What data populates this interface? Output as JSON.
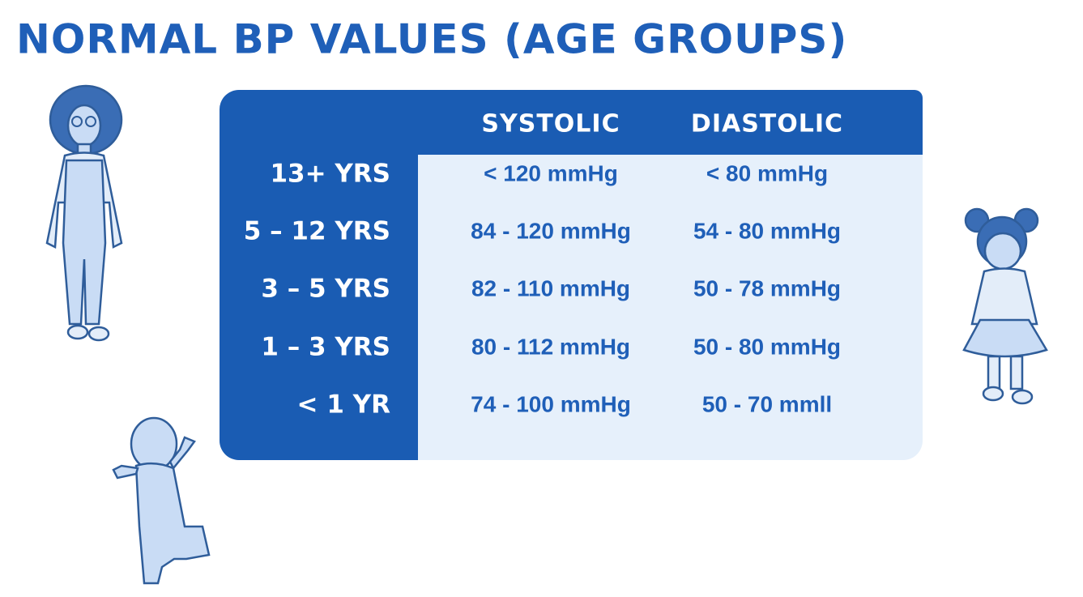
{
  "title": "NORMAL BP VALUES (AGE GROUPS)",
  "table": {
    "header": [
      "SYSTOLIC",
      "DIASTOLIC"
    ],
    "rows": [
      [
        "13+ YRS",
        "< 120 mmHg",
        "< 80 mmHg"
      ],
      [
        "5 – 12 YRS",
        "84 - 120 mmHg",
        "54 - 80 mmHg"
      ],
      [
        "3 – 5 YRS",
        "82 - 110 mmHg",
        "50 - 78 mmHg"
      ],
      [
        "1 – 3 YRS",
        "80 - 112 mmHg",
        "50 - 80 mmHg"
      ],
      [
        "< 1 YR",
        "74 - 100 mmHg",
        "50 - 70 mmll"
      ]
    ]
  }
}
